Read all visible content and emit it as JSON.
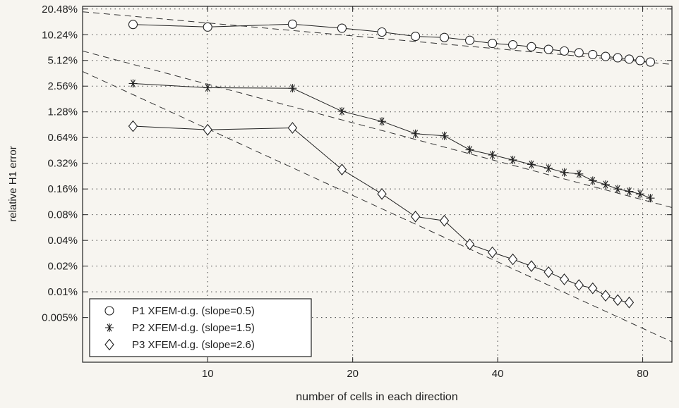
{
  "chart_data": {
    "type": "line",
    "xlabel": "number of cells in each direction",
    "ylabel": "relative H1 error",
    "x_scale": "log",
    "y_scale": "log",
    "xlim": [
      5.5,
      92
    ],
    "ylim": [
      0.0015,
      22
    ],
    "grid": true,
    "legend_position": "bottom-left",
    "x_ticks": [
      {
        "value": 10,
        "label": "10"
      },
      {
        "value": 20,
        "label": "20"
      },
      {
        "value": 40,
        "label": "40"
      },
      {
        "value": 80,
        "label": "80"
      }
    ],
    "y_ticks": [
      {
        "value": 20.48,
        "label": "20.48%"
      },
      {
        "value": 10.24,
        "label": "10.24%"
      },
      {
        "value": 5.12,
        "label": "5.12%"
      },
      {
        "value": 2.56,
        "label": "2.56%"
      },
      {
        "value": 1.28,
        "label": "1.28%"
      },
      {
        "value": 0.64,
        "label": "0.64%"
      },
      {
        "value": 0.32,
        "label": "0.32%"
      },
      {
        "value": 0.16,
        "label": "0.16%"
      },
      {
        "value": 0.08,
        "label": "0.08%"
      },
      {
        "value": 0.04,
        "label": "0.04%"
      },
      {
        "value": 0.02,
        "label": "0.02%"
      },
      {
        "value": 0.01,
        "label": "0.01%"
      },
      {
        "value": 0.005,
        "label": "0.005%"
      }
    ],
    "series": [
      {
        "name": "P1 XFEM-d.g. (slope=0.5)",
        "marker": "circle",
        "x": [
          7,
          10,
          15,
          19,
          23,
          27,
          31,
          35,
          39,
          43,
          47,
          51,
          55,
          59,
          63,
          67,
          71,
          75,
          79,
          83
        ],
        "y": [
          13.5,
          12.6,
          13.6,
          12.2,
          11.0,
          9.8,
          9.5,
          8.8,
          8.1,
          7.8,
          7.4,
          6.9,
          6.6,
          6.3,
          6.0,
          5.7,
          5.5,
          5.3,
          5.1,
          4.9
        ]
      },
      {
        "name": "P2 XFEM-d.g. (slope=1.5)",
        "marker": "asterisk",
        "x": [
          7,
          10,
          15,
          19,
          23,
          27,
          31,
          35,
          39,
          43,
          47,
          51,
          55,
          59,
          63,
          67,
          71,
          75,
          79,
          83
        ],
        "y": [
          2.75,
          2.45,
          2.42,
          1.3,
          0.99,
          0.71,
          0.67,
          0.46,
          0.4,
          0.35,
          0.31,
          0.28,
          0.25,
          0.24,
          0.2,
          0.18,
          0.16,
          0.15,
          0.14,
          0.125
        ]
      },
      {
        "name": "P3 XFEM-d.g. (slope=2.6)",
        "marker": "diamond",
        "x": [
          7,
          10,
          15,
          19,
          23,
          27,
          31,
          35,
          39,
          43,
          47,
          51,
          55,
          59,
          63,
          67,
          71,
          75
        ],
        "y": [
          0.87,
          0.79,
          0.83,
          0.27,
          0.14,
          0.076,
          0.068,
          0.036,
          0.029,
          0.024,
          0.02,
          0.017,
          0.014,
          0.012,
          0.011,
          0.009,
          0.008,
          0.0075
        ]
      }
    ],
    "reference_lines": [
      {
        "slope": 0.5,
        "x": [
          5.5,
          92
        ],
        "y": [
          19,
          4.6
        ]
      },
      {
        "slope": 1.5,
        "x": [
          5.5,
          92
        ],
        "y": [
          6.6,
          0.097
        ]
      },
      {
        "slope": 2.6,
        "x": [
          5.5,
          92
        ],
        "y": [
          3.8,
          0.0026
        ]
      }
    ]
  }
}
